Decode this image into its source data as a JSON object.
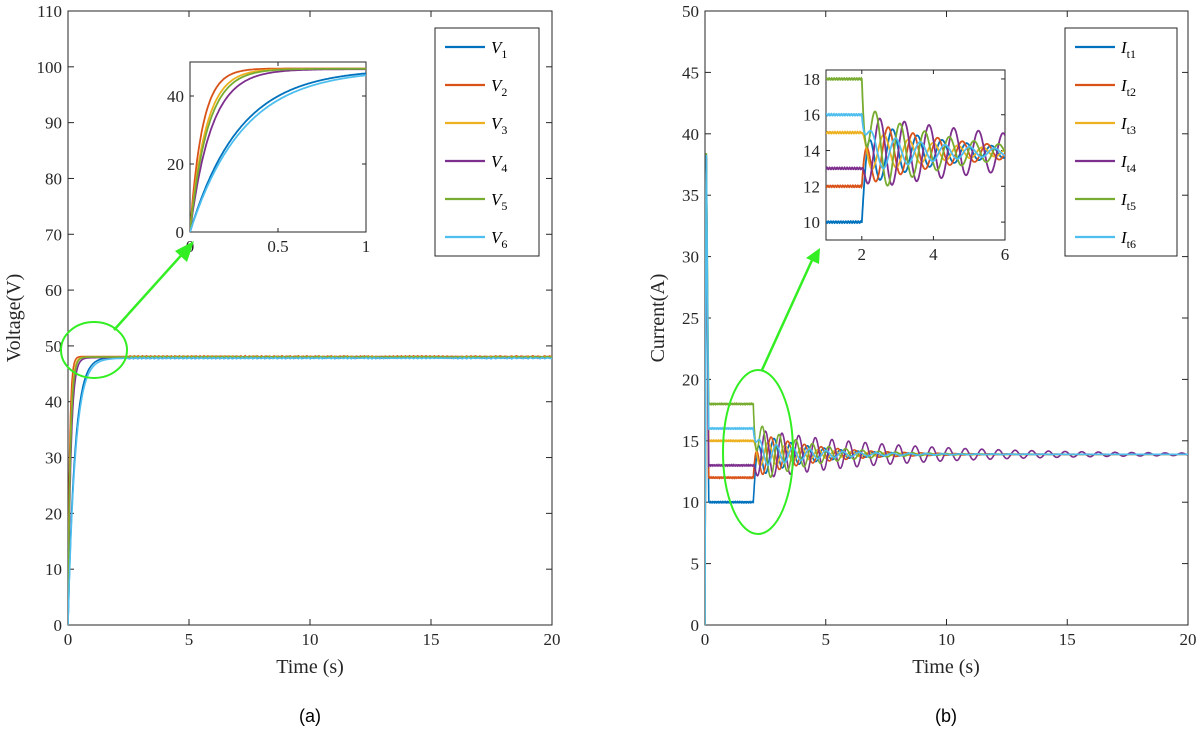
{
  "colors": [
    "#0072BD",
    "#D95319",
    "#EDB120",
    "#7E2F8E",
    "#77AC30",
    "#4DBEEE"
  ],
  "annotation_color": "#33ee22",
  "chart_data": [
    {
      "type": "line",
      "caption": "(a)",
      "xlabel": "Time (s)",
      "ylabel": "Voltage(V)",
      "xlim": [
        0,
        20
      ],
      "ylim": [
        0,
        110
      ],
      "xticks": [
        0,
        5,
        10,
        15,
        20
      ],
      "yticks": [
        0,
        10,
        20,
        30,
        40,
        50,
        60,
        70,
        80,
        90,
        100,
        110
      ],
      "legend_position": "top-right",
      "series": [
        {
          "name": "V",
          "sub": "1",
          "steady": 48.0,
          "tau": 0.28
        },
        {
          "name": "V",
          "sub": "2",
          "steady": 48.1,
          "tau": 0.07
        },
        {
          "name": "V",
          "sub": "3",
          "steady": 48.0,
          "tau": 0.09
        },
        {
          "name": "V",
          "sub": "4",
          "steady": 47.9,
          "tau": 0.12
        },
        {
          "name": "V",
          "sub": "5",
          "steady": 48.0,
          "tau": 0.1
        },
        {
          "name": "V",
          "sub": "6",
          "steady": 47.8,
          "tau": 0.3
        }
      ],
      "inset": {
        "xlim": [
          0,
          1
        ],
        "ylim": [
          0,
          50
        ],
        "xticks": [
          0,
          0.5,
          1
        ],
        "xticklabels": [
          "0",
          "0.5",
          "1"
        ],
        "yticks": [
          0,
          20,
          40
        ]
      }
    },
    {
      "type": "line",
      "caption": "(b)",
      "xlabel": "Time (s)",
      "ylabel": "Current(A)",
      "xlim": [
        0,
        20
      ],
      "ylim": [
        0,
        50
      ],
      "xticks": [
        0,
        5,
        10,
        15,
        20
      ],
      "yticks": [
        0,
        5,
        10,
        15,
        20,
        25,
        30,
        35,
        40,
        45,
        50
      ],
      "legend_position": "top-right",
      "series": [
        {
          "name": "I",
          "sub": "t1",
          "initial": 10,
          "phase": 0.0,
          "amp": 1.9,
          "damp": 0.45
        },
        {
          "name": "I",
          "sub": "t2",
          "initial": 12,
          "phase": 1.1,
          "amp": 1.9,
          "damp": 0.4
        },
        {
          "name": "I",
          "sub": "t3",
          "initial": 15,
          "phase": 2.2,
          "amp": 1.3,
          "damp": 0.45
        },
        {
          "name": "I",
          "sub": "t4",
          "initial": 13,
          "phase": 3.3,
          "amp": 2.1,
          "damp": 0.17
        },
        {
          "name": "I",
          "sub": "t5",
          "initial": 18,
          "phase": 4.4,
          "amp": 2.6,
          "damp": 0.45
        },
        {
          "name": "I",
          "sub": "t6",
          "initial": 16,
          "phase": 5.5,
          "amp": 1.2,
          "damp": 0.45
        }
      ],
      "steady": 13.9,
      "switch_time": 2.0,
      "inset": {
        "xlim": [
          1.0,
          6.0
        ],
        "ylim": [
          9,
          18.5
        ],
        "xticks": [
          2,
          4,
          6
        ],
        "xticklabels": [
          "2",
          "4",
          "6"
        ],
        "yticks": [
          10,
          12,
          14,
          16,
          18
        ]
      }
    }
  ]
}
